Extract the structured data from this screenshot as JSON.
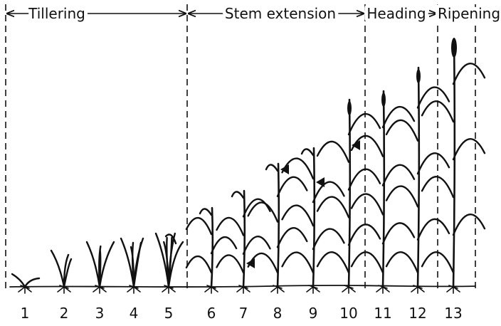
{
  "stages": [
    {
      "label": "Tillering"
    },
    {
      "label": "Stem extension"
    },
    {
      "label": "Heading"
    },
    {
      "label": "Ripening"
    }
  ],
  "plants": [
    "1",
    "2",
    "3",
    "4",
    "5",
    "6",
    "7",
    "8",
    "9",
    "10",
    "11",
    "12",
    "13"
  ]
}
